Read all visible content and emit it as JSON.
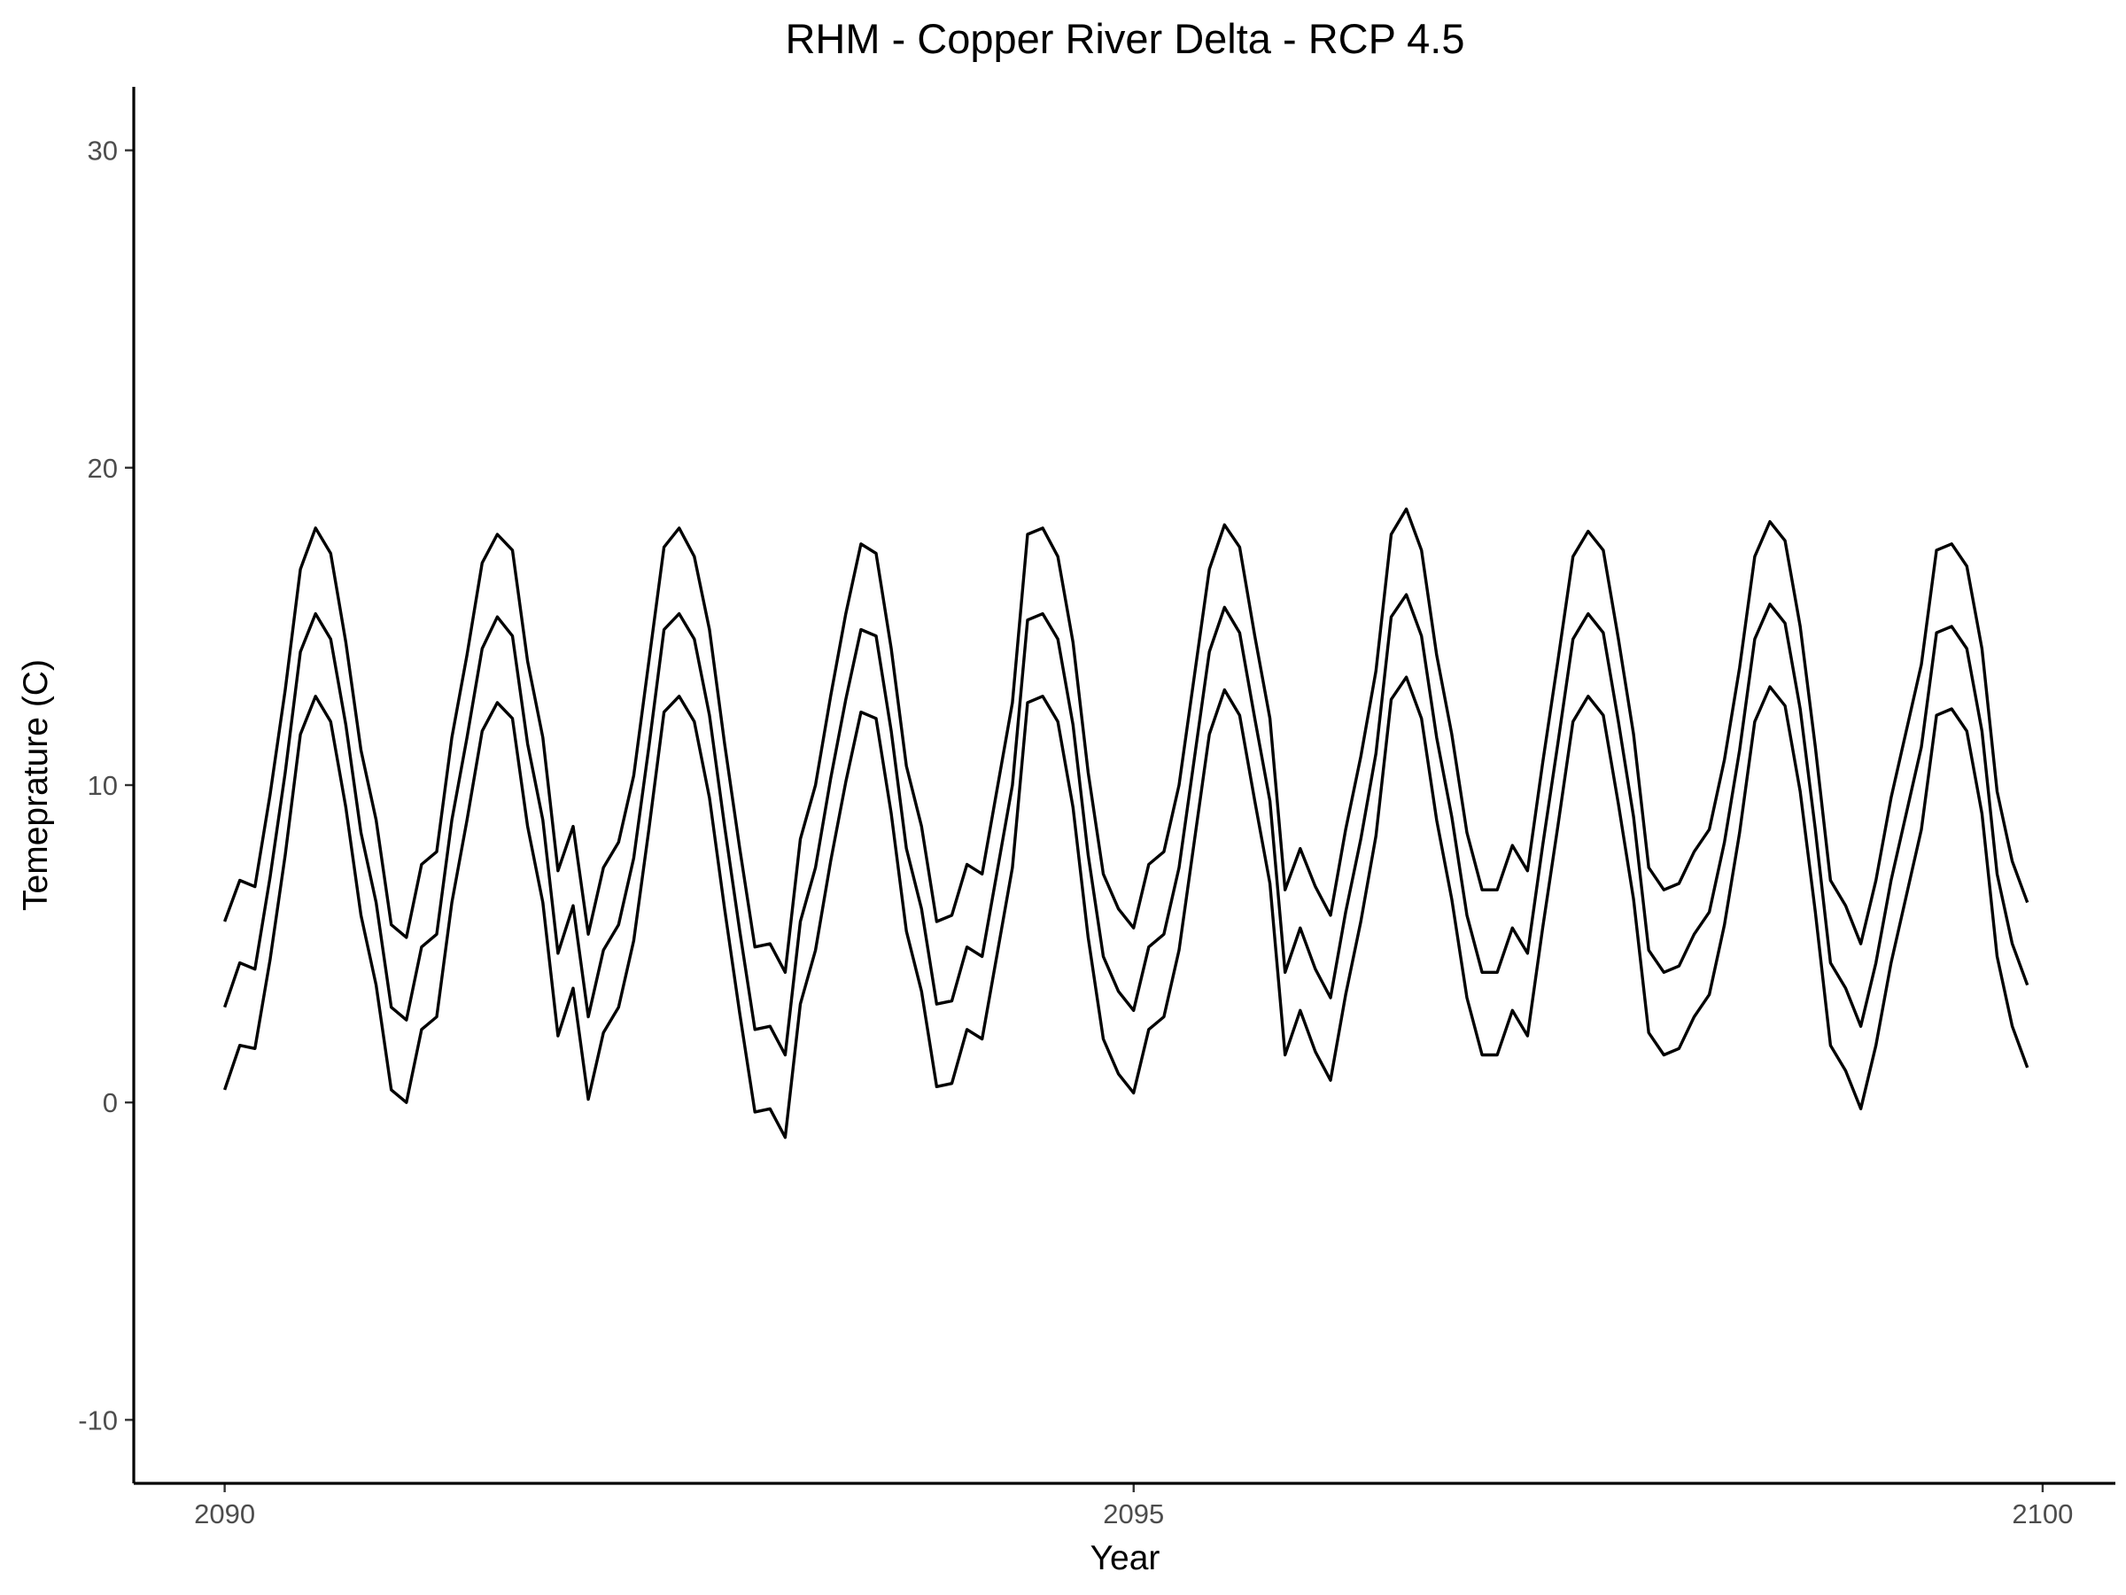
{
  "chart_data": {
    "type": "line",
    "title": "RHM - Copper River Delta - RCP 4.5",
    "xlabel": "Year",
    "ylabel": "Temeprature (C)",
    "xlim": [
      2089.5,
      2100.4
    ],
    "ylim": [
      -12,
      32
    ],
    "x_ticks": [
      2090,
      2095,
      2100
    ],
    "x_tick_labels": [
      "2090",
      "2095",
      "2100"
    ],
    "y_ticks": [
      -10,
      0,
      10,
      20,
      30
    ],
    "y_tick_labels": [
      "-10",
      "0",
      "10",
      "20",
      "30"
    ],
    "grid": false,
    "legend": "none",
    "line_color": "#000000",
    "x_start": 2090,
    "x_step": 0.08333,
    "series": [
      {
        "values": [
          5.7,
          7.0,
          6.8,
          9.7,
          13.0,
          16.8,
          18.1,
          17.3,
          14.5,
          11.1,
          8.9,
          5.6,
          5.2,
          7.5,
          7.9,
          11.5,
          14.1,
          17.0,
          17.9,
          17.4,
          13.9,
          11.5,
          7.3,
          8.7,
          5.3,
          7.4,
          8.2,
          10.3,
          13.9,
          17.5,
          18.1,
          17.2,
          14.9,
          11.3,
          8.0,
          4.9,
          5.0,
          4.1,
          8.3,
          10.0,
          12.8,
          15.4,
          17.6,
          17.3,
          14.3,
          10.6,
          8.7,
          5.7,
          5.9,
          7.5,
          7.2,
          9.9,
          12.6,
          17.9,
          18.1,
          17.2,
          14.5,
          10.4,
          7.2,
          6.1,
          5.5,
          7.5,
          7.9,
          10.0,
          13.4,
          16.8,
          18.2,
          17.5,
          14.7,
          12.1,
          6.7,
          8.0,
          6.8,
          5.9,
          8.6,
          10.9,
          13.6,
          17.9,
          18.7,
          17.4,
          14.1,
          11.6,
          8.5,
          6.7,
          6.7,
          8.1,
          7.3,
          10.7,
          13.9,
          17.2,
          18.0,
          17.4,
          14.6,
          11.6,
          7.4,
          6.7,
          6.9,
          7.9,
          8.6,
          10.8,
          13.7,
          17.2,
          18.3,
          17.7,
          15.0,
          11.2,
          7.0,
          6.2,
          5.0,
          7.0,
          9.6,
          11.7,
          13.8,
          17.4,
          17.6,
          16.9,
          14.3,
          9.8,
          7.6,
          6.3
        ]
      },
      {
        "values": [
          3.0,
          4.4,
          4.2,
          7.1,
          10.4,
          14.2,
          15.4,
          14.6,
          11.9,
          8.5,
          6.3,
          3.0,
          2.6,
          4.9,
          5.3,
          8.9,
          11.5,
          14.3,
          15.3,
          14.7,
          11.3,
          8.9,
          4.7,
          6.2,
          2.7,
          4.8,
          5.6,
          7.7,
          11.2,
          14.9,
          15.4,
          14.6,
          12.2,
          8.7,
          5.4,
          2.3,
          2.4,
          1.5,
          5.7,
          7.4,
          10.2,
          12.7,
          14.9,
          14.7,
          11.7,
          8.0,
          6.1,
          3.1,
          3.2,
          4.9,
          4.6,
          7.3,
          10.0,
          15.2,
          15.4,
          14.6,
          11.9,
          7.8,
          4.6,
          3.5,
          2.9,
          4.9,
          5.3,
          7.4,
          10.8,
          14.2,
          15.6,
          14.8,
          12.1,
          9.5,
          4.1,
          5.5,
          4.2,
          3.3,
          6.0,
          8.3,
          11.0,
          15.3,
          16.0,
          14.7,
          11.5,
          9.0,
          5.9,
          4.1,
          4.1,
          5.5,
          4.7,
          8.1,
          11.3,
          14.6,
          15.4,
          14.8,
          12.0,
          9.0,
          4.8,
          4.1,
          4.3,
          5.3,
          6.0,
          8.2,
          11.1,
          14.6,
          15.7,
          15.1,
          12.4,
          8.6,
          4.4,
          3.6,
          2.4,
          4.4,
          7.0,
          9.1,
          11.2,
          14.8,
          15.0,
          14.3,
          11.7,
          7.2,
          5.0,
          3.7
        ]
      },
      {
        "values": [
          0.4,
          1.8,
          1.7,
          4.5,
          7.8,
          11.6,
          12.8,
          12.0,
          9.3,
          5.9,
          3.7,
          0.4,
          0.0,
          2.3,
          2.7,
          6.3,
          8.9,
          11.7,
          12.6,
          12.1,
          8.7,
          6.3,
          2.1,
          3.6,
          0.1,
          2.2,
          3.0,
          5.1,
          8.6,
          12.3,
          12.8,
          12.0,
          9.6,
          6.1,
          2.8,
          -0.3,
          -0.2,
          -1.1,
          3.1,
          4.8,
          7.6,
          10.1,
          12.3,
          12.1,
          9.1,
          5.4,
          3.5,
          0.5,
          0.6,
          2.3,
          2.0,
          4.7,
          7.4,
          12.6,
          12.8,
          12.0,
          9.3,
          5.2,
          2.0,
          0.9,
          0.3,
          2.3,
          2.7,
          4.8,
          8.2,
          11.6,
          13.0,
          12.2,
          9.5,
          6.9,
          1.5,
          2.9,
          1.6,
          0.7,
          3.4,
          5.7,
          8.4,
          12.7,
          13.4,
          12.1,
          8.9,
          6.4,
          3.3,
          1.5,
          1.5,
          2.9,
          2.1,
          5.5,
          8.7,
          12.0,
          12.8,
          12.2,
          9.4,
          6.4,
          2.2,
          1.5,
          1.7,
          2.7,
          3.4,
          5.6,
          8.5,
          12.0,
          13.1,
          12.5,
          9.8,
          6.0,
          1.8,
          1.0,
          -0.2,
          1.8,
          4.4,
          6.5,
          8.6,
          12.2,
          12.4,
          11.7,
          9.1,
          4.6,
          2.4,
          1.1
        ]
      }
    ]
  }
}
